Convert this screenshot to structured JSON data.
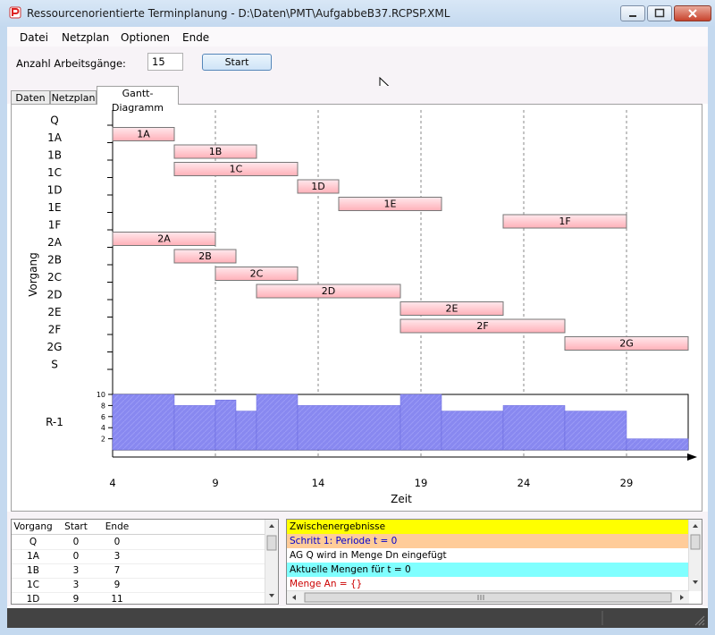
{
  "window": {
    "title": "Ressourcenorientierte Terminplanung - D:\\Daten\\PMT\\AufgabbeB37.RCPSP.XML"
  },
  "menu": [
    "Datei",
    "Netzplan",
    "Optionen",
    "Ende"
  ],
  "toolbar": {
    "count_label": "Anzahl Arbeitsgänge:",
    "count_value": "15",
    "start_label": "Start"
  },
  "tabs": [
    "Daten",
    "Netzplan",
    "Gantt-Diagramm"
  ],
  "active_tab": "Gantt-Diagramm",
  "chart_data": {
    "type": "gantt",
    "ylabel": "Vorgang",
    "xlabel": "Zeit",
    "xticks": [
      4,
      9,
      14,
      19,
      24,
      29
    ],
    "xlim": [
      4,
      32
    ],
    "rows": [
      "Q",
      "1A",
      "1B",
      "1C",
      "1D",
      "1E",
      "1F",
      "2A",
      "2B",
      "2C",
      "2D",
      "2E",
      "2F",
      "2G",
      "S"
    ],
    "tasks": [
      {
        "name": "1A",
        "start": 4,
        "end": 7
      },
      {
        "name": "1B",
        "start": 7,
        "end": 11
      },
      {
        "name": "1C",
        "start": 7,
        "end": 13
      },
      {
        "name": "1D",
        "start": 13,
        "end": 15
      },
      {
        "name": "1E",
        "start": 15,
        "end": 20
      },
      {
        "name": "1F",
        "start": 23,
        "end": 29
      },
      {
        "name": "2A",
        "start": 4,
        "end": 9
      },
      {
        "name": "2B",
        "start": 7,
        "end": 10
      },
      {
        "name": "2C",
        "start": 9,
        "end": 13
      },
      {
        "name": "2D",
        "start": 11,
        "end": 18
      },
      {
        "name": "2E",
        "start": 18,
        "end": 23
      },
      {
        "name": "2F",
        "start": 18,
        "end": 26
      },
      {
        "name": "2G",
        "start": 26,
        "end": 32
      }
    ],
    "resource": {
      "name": "R-1",
      "yticks": [
        2,
        4,
        6,
        8,
        10
      ],
      "ylim": [
        0,
        10
      ],
      "profile": [
        {
          "start": 4,
          "end": 7,
          "value": 10
        },
        {
          "start": 7,
          "end": 9,
          "value": 8
        },
        {
          "start": 9,
          "end": 10,
          "value": 9
        },
        {
          "start": 10,
          "end": 11,
          "value": 7
        },
        {
          "start": 11,
          "end": 13,
          "value": 10
        },
        {
          "start": 13,
          "end": 18,
          "value": 8
        },
        {
          "start": 18,
          "end": 20,
          "value": 10
        },
        {
          "start": 20,
          "end": 23,
          "value": 7
        },
        {
          "start": 23,
          "end": 26,
          "value": 8
        },
        {
          "start": 26,
          "end": 29,
          "value": 7
        },
        {
          "start": 29,
          "end": 32,
          "value": 2
        }
      ]
    }
  },
  "table": {
    "headers": [
      "Vorgang",
      "Start",
      "Ende"
    ],
    "rows": [
      [
        "Q",
        "0",
        "0"
      ],
      [
        "1A",
        "0",
        "3"
      ],
      [
        "1B",
        "3",
        "7"
      ],
      [
        "1C",
        "3",
        "9"
      ],
      [
        "1D",
        "9",
        "11"
      ]
    ]
  },
  "log": [
    {
      "text": "Zwischenergebnisse",
      "bg": "#ffff00",
      "color": "#000000"
    },
    {
      "text": "Schritt 1: Periode t = 0",
      "bg": "#ffcc99",
      "color": "#0000cc"
    },
    {
      "text": "AG Q wird in Menge Dn eingefügt",
      "bg": "#ffffff",
      "color": "#000000"
    },
    {
      "text": "Aktuelle Mengen für t = 0",
      "bg": "#80ffff",
      "color": "#000000"
    },
    {
      "text": "Menge An = {}",
      "bg": "#ffffff",
      "color": "#cc0000"
    }
  ],
  "colors": {
    "bar_fill": "#ffb0b8",
    "resource_fill": "#8888f0",
    "accent": "#3399ff"
  }
}
